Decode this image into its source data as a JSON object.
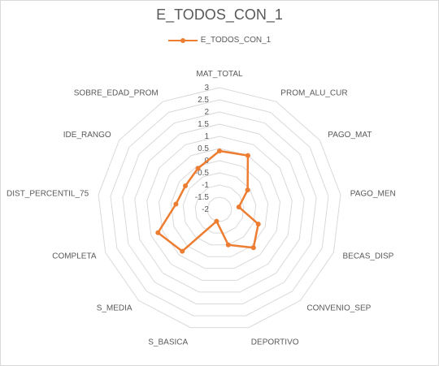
{
  "chart_data": {
    "type": "radar",
    "title": "E_TODOS_CON_1",
    "categories": [
      "MAT_TOTAL",
      "PROM_ALU_CUR",
      "PAGO_MAT",
      "PAGO_MEN",
      "BECAS_DISP",
      "CONVENIO_SEP",
      "DEPORTIVO",
      "S_BASICA",
      "S_MEDIA",
      "COMPLETA",
      "DIST_PERCENTIL_75",
      "IDE_RANGO",
      "SOBRE_EDAD_PROM"
    ],
    "series": [
      {
        "name": "E_TODOS_CON_1",
        "values": [
          0.4,
          0.5,
          -0.6,
          -1.2,
          -0.3,
          0.1,
          -0.5,
          -1.5,
          0.3,
          0.7,
          -0.2,
          -0.3,
          -0.1
        ]
      }
    ],
    "r_ticks": [
      "3",
      "2.5",
      "2",
      "1.5",
      "1",
      "0.5",
      "0",
      "-0.5",
      "-1",
      "-1.5",
      "-2"
    ],
    "r_range": [
      -2,
      3
    ],
    "grid": true,
    "legend_position": "top",
    "colors": {
      "series": "#ED7D31",
      "grid": "#d9d9d9",
      "text": "#595959"
    }
  }
}
